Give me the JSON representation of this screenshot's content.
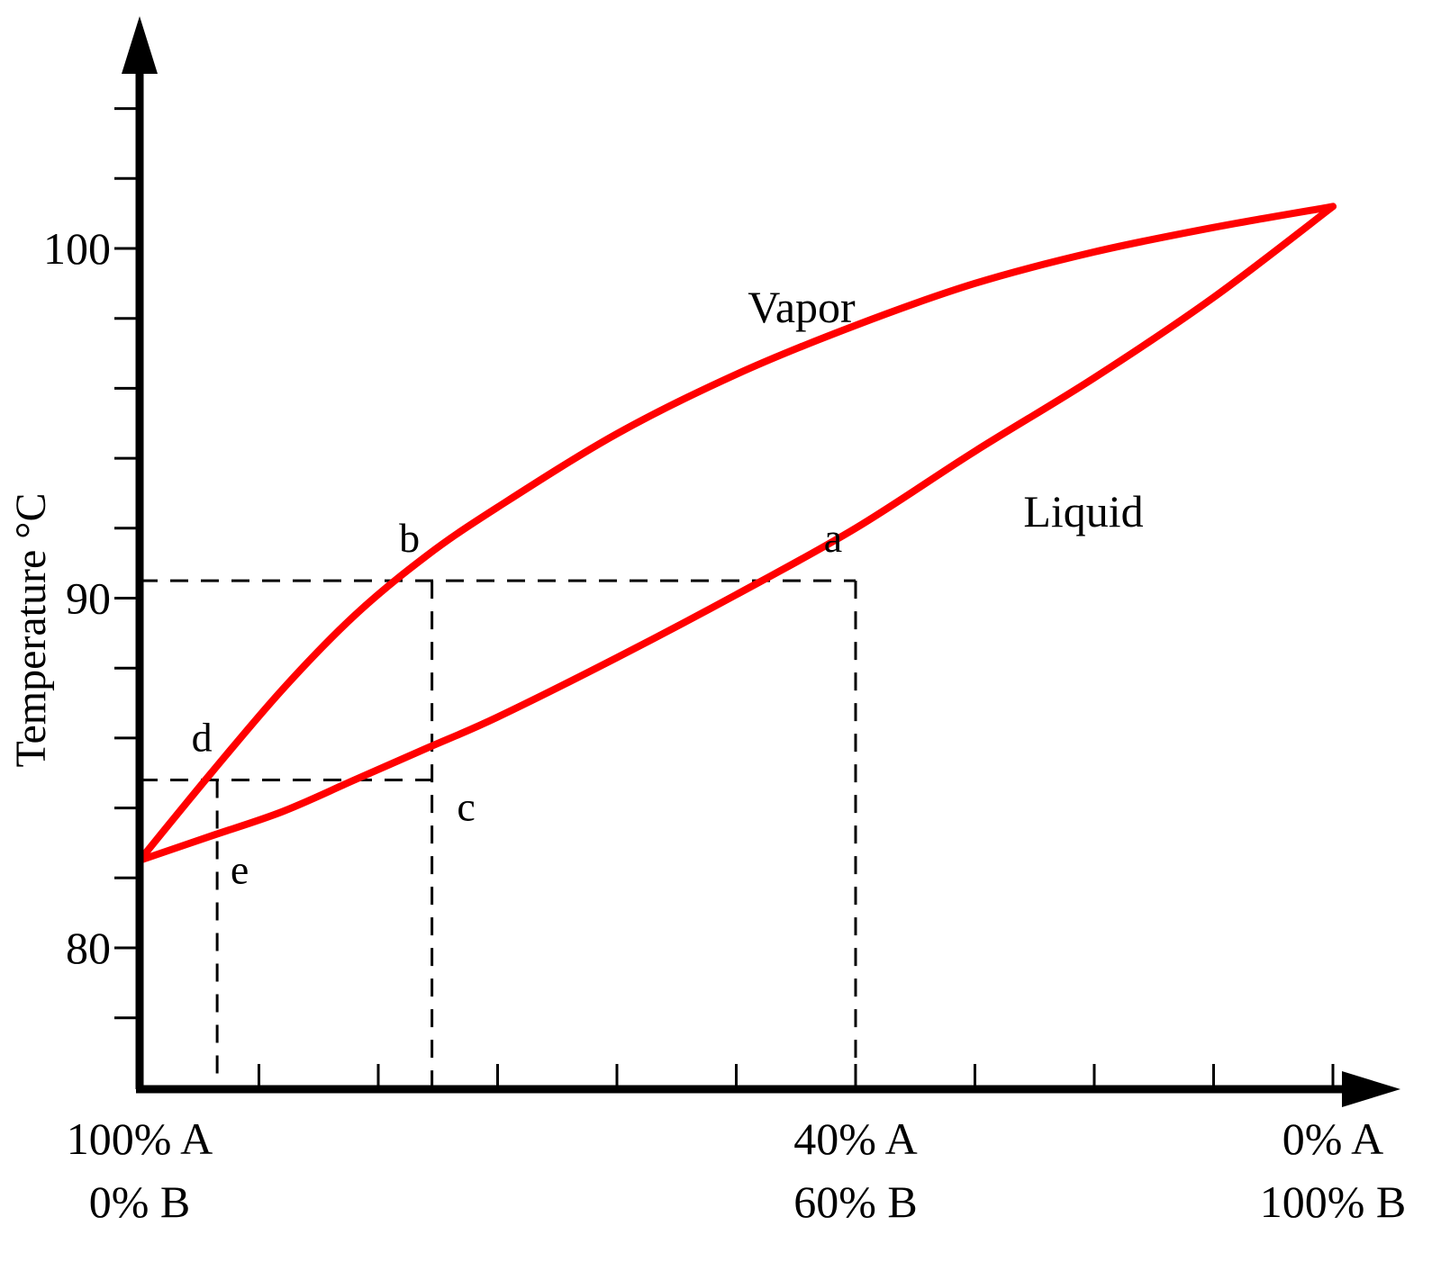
{
  "chart_data": {
    "type": "line",
    "ylabel": "Temperature °C",
    "xlabel": "",
    "xlim": [
      0,
      100
    ],
    "ylim": [
      77,
      105
    ],
    "y_ticks": [
      80,
      90,
      100
    ],
    "y_tick_labels": [
      "80",
      "90",
      "100"
    ],
    "y_minor_tick_step": 2,
    "x_tick_step": 10,
    "x_tick_labels": [
      {
        "x": 0,
        "line1": "100% A",
        "line2": "0% B"
      },
      {
        "x": 60,
        "line1": "40% A",
        "line2": "60% B"
      },
      {
        "x": 100,
        "line1": "0% A",
        "line2": "100% B"
      }
    ],
    "curve_labels": {
      "vapor": "Vapor",
      "liquid": "Liquid"
    },
    "series": [
      {
        "name": "Vapor",
        "color": "#ff0000",
        "x": [
          0,
          6,
          12,
          18,
          24,
          30,
          40,
          50,
          60,
          70,
          80,
          90,
          100
        ],
        "y": [
          82.5,
          85.0,
          87.4,
          89.5,
          91.2,
          92.6,
          94.7,
          96.4,
          97.8,
          99.0,
          99.9,
          100.6,
          101.2
        ]
      },
      {
        "name": "Liquid",
        "color": "#ff0000",
        "x": [
          0,
          6,
          12,
          18,
          24,
          30,
          40,
          50,
          60,
          70,
          80,
          90,
          100
        ],
        "y": [
          82.5,
          83.2,
          83.9,
          84.8,
          85.7,
          86.6,
          88.3,
          90.1,
          92.0,
          94.2,
          96.3,
          98.6,
          101.2
        ]
      }
    ],
    "points": [
      {
        "label": "a",
        "x": 60,
        "y": 90.5
      },
      {
        "label": "b",
        "x": 24.5,
        "y": 90.5
      },
      {
        "label": "c",
        "x": 24.5,
        "y": 84.8
      },
      {
        "label": "d",
        "x": 6.5,
        "y": 84.8
      },
      {
        "label": "e",
        "x": 6.5,
        "y": 83.0
      }
    ],
    "dashed_lines": [
      {
        "x1": 0,
        "y1": 90.5,
        "x2": 60,
        "y2": 90.5
      },
      {
        "x1": 60,
        "y1": 90.5,
        "x2": 60,
        "y2": 77
      },
      {
        "x1": 24.5,
        "y1": 90.5,
        "x2": 24.5,
        "y2": 77
      },
      {
        "x1": 0,
        "y1": 84.8,
        "x2": 24.5,
        "y2": 84.8
      },
      {
        "x1": 6.5,
        "y1": 84.8,
        "x2": 6.5,
        "y2": 77
      }
    ],
    "grid": false,
    "legend": "none"
  }
}
